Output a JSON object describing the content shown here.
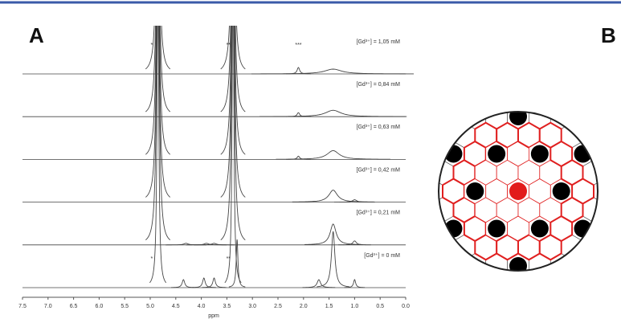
{
  "chart_data": {
    "type": "line",
    "panel_a": "A",
    "panel_b": "B",
    "xlabel": "ppm",
    "xlim": [
      7.5,
      0.0
    ],
    "xticks": [
      7.5,
      {
        "value": 7.0,
        "label": "7.0"
      },
      6.5,
      {
        "value": 6.0,
        "label": "6.0"
      },
      5.5,
      {
        "value": 5.0,
        "label": "5.0"
      },
      4.5,
      {
        "value": 4.0,
        "label": "4.0"
      },
      3.5,
      {
        "value": 3.0,
        "label": "3.0"
      },
      2.5,
      {
        "value": 2.0,
        "label": "2.0"
      },
      1.5,
      {
        "value": 1.0,
        "label": "1.0"
      },
      0.5,
      {
        "value": 0.0,
        "label": "0.0"
      }
    ],
    "series": [
      {
        "name": "[Gd³⁺] = 1,05 mM",
        "color": "#444444",
        "peak_ppm": [
          4.85,
          3.38,
          2.1,
          1.42
        ],
        "peak_height": [
          400,
          400,
          8,
          6
        ],
        "peak_width": [
          0.03,
          0.03,
          0.03,
          0.2
        ],
        "annotations": [
          "*",
          "**",
          "***"
        ],
        "annotation_ppm": [
          4.97,
          3.47,
          2.1
        ]
      },
      {
        "name": "[Gd³⁺] = 0,84 mM",
        "color": "#444444",
        "peak_ppm": [
          4.85,
          3.38,
          2.1,
          1.42
        ],
        "peak_height": [
          400,
          400,
          5,
          8
        ],
        "peak_width": [
          0.03,
          0.03,
          0.03,
          0.18
        ]
      },
      {
        "name": "[Gd³⁺] = 0,63 mM",
        "color": "#444444",
        "peak_ppm": [
          4.85,
          3.38,
          2.1,
          1.42
        ],
        "peak_height": [
          400,
          400,
          4,
          11
        ],
        "peak_width": [
          0.03,
          0.03,
          0.03,
          0.14
        ]
      },
      {
        "name": "[Gd³⁺] = 0,42 mM",
        "color": "#444444",
        "peak_ppm": [
          4.85,
          3.38,
          1.42,
          1.0
        ],
        "peak_height": [
          400,
          400,
          15,
          3
        ],
        "peak_width": [
          0.03,
          0.03,
          0.1,
          0.05
        ]
      },
      {
        "name": "[Gd³⁺] = 0,21 mM",
        "color": "#444444",
        "peak_ppm": [
          4.85,
          3.38,
          4.3,
          3.9,
          3.75,
          1.42,
          1.0
        ],
        "peak_height": [
          400,
          400,
          2,
          2,
          2,
          26,
          5
        ],
        "peak_width": [
          0.03,
          0.03,
          0.05,
          0.05,
          0.05,
          0.07,
          0.04
        ]
      },
      {
        "name": "[Gd³⁺] = 0 mM",
        "color": "#444444",
        "peak_ppm": [
          4.85,
          3.38,
          3.3,
          4.35,
          3.95,
          3.75,
          1.7,
          1.42,
          1.0
        ],
        "peak_height": [
          400,
          400,
          60,
          10,
          12,
          12,
          10,
          70,
          10
        ],
        "peak_width": [
          0.02,
          0.02,
          0.02,
          0.03,
          0.03,
          0.03,
          0.04,
          0.04,
          0.025
        ],
        "annotations": [
          "*",
          "**"
        ],
        "annotation_ppm": [
          4.97,
          3.47
        ]
      }
    ]
  }
}
